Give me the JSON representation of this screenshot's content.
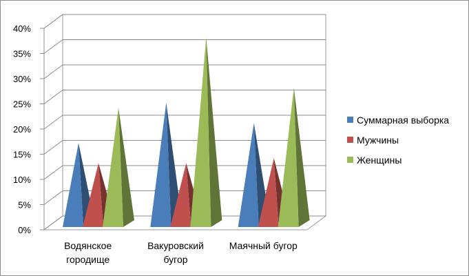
{
  "chart_data": {
    "type": "bar",
    "style": "3d-pyramid",
    "categories": [
      [
        "Водянское",
        "городище"
      ],
      [
        "Вакуровский",
        "бугор"
      ],
      [
        "Маячный бугор"
      ]
    ],
    "series": [
      {
        "name": "Суммарная выборка",
        "color": "#4A7EBB",
        "values": [
          16,
          24,
          20
        ]
      },
      {
        "name": "Мужчины",
        "color": "#C0504D",
        "values": [
          12,
          12,
          13
        ]
      },
      {
        "name": "Женщины",
        "color": "#9BBB59",
        "values": [
          23,
          37,
          27
        ]
      }
    ],
    "ylim": [
      0,
      40
    ],
    "yticks": [
      "0%",
      "5%",
      "10%",
      "15%",
      "20%",
      "25%",
      "30%",
      "35%",
      "40%"
    ],
    "grid": true,
    "legend_position": "right"
  }
}
